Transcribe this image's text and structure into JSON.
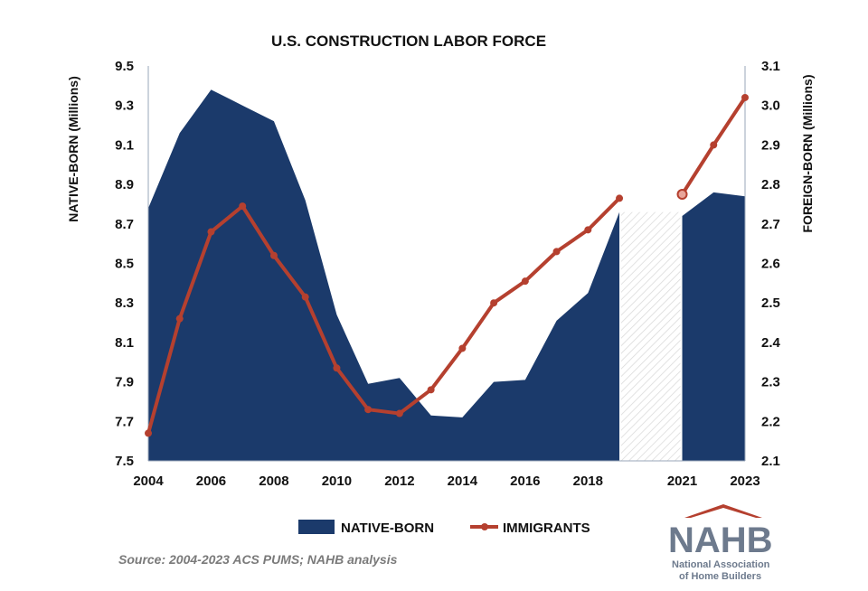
{
  "chart_data": {
    "type": "area+line",
    "title": "U.S. CONSTRUCTION LABOR FORCE",
    "ylabel_left": "NATIVE-BORN (Millions)",
    "ylabel_right": "FOREIGN-BORN (Millions)",
    "x_tick_labels": [
      "2004",
      "2006",
      "2008",
      "2010",
      "2012",
      "2014",
      "2016",
      "2018",
      "2021",
      "2023"
    ],
    "y_left_ticks": [
      "9.5",
      "9.3",
      "9.1",
      "8.9",
      "8.7",
      "8.5",
      "8.3",
      "8.1",
      "7.9",
      "7.7",
      "7.5"
    ],
    "y_right_ticks": [
      "3.1",
      "3.0",
      "2.9",
      "2.8",
      "2.7",
      "2.6",
      "2.5",
      "2.4",
      "2.3",
      "2.2",
      "2.1"
    ],
    "ylim_left": [
      7.5,
      9.5
    ],
    "ylim_right": [
      2.1,
      3.1
    ],
    "xlim": [
      2004,
      2023
    ],
    "missing_year": 2020,
    "series": [
      {
        "name": "NATIVE-BORN",
        "axis": "left",
        "kind": "area",
        "color": "#1b3a6b",
        "x": [
          2004,
          2005,
          2006,
          2007,
          2008,
          2009,
          2010,
          2011,
          2012,
          2013,
          2014,
          2015,
          2016,
          2017,
          2018,
          2019,
          2021,
          2022,
          2023
        ],
        "values": [
          8.78,
          9.16,
          9.38,
          9.3,
          9.22,
          8.82,
          8.24,
          7.89,
          7.92,
          7.73,
          7.72,
          7.9,
          7.91,
          8.21,
          8.35,
          8.76,
          8.74,
          8.86,
          8.84
        ]
      },
      {
        "name": "IMMIGRANTS",
        "axis": "right",
        "kind": "line",
        "color": "#b5402f",
        "x": [
          2004,
          2005,
          2006,
          2007,
          2008,
          2009,
          2010,
          2011,
          2012,
          2013,
          2014,
          2015,
          2016,
          2017,
          2018,
          2019,
          2021,
          2022,
          2023
        ],
        "values": [
          2.17,
          2.46,
          2.68,
          2.745,
          2.62,
          2.515,
          2.335,
          2.23,
          2.22,
          2.28,
          2.385,
          2.5,
          2.555,
          2.63,
          2.685,
          2.765,
          2.775,
          2.9,
          3.02
        ]
      }
    ],
    "legend": {
      "placement": "bottom-center"
    },
    "grid": false
  },
  "source": "Source: 2004-2023 ACS PUMS; NAHB analysis",
  "logo": {
    "mark": "NAHB",
    "mark_colors": {
      "primary": "#6d7a8d",
      "accent": "#b5402f"
    },
    "line1": "National Association",
    "line2": "of Home Builders"
  }
}
